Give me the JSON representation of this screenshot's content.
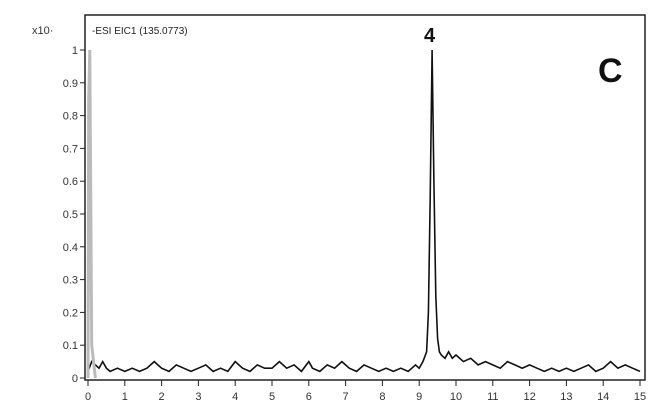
{
  "chart_data": {
    "type": "line",
    "y_multiplier_label": "x10·",
    "trace_label": "-ESI EIC1 (135.0773)",
    "panel_label": "C",
    "peak_label": "4",
    "xlim": [
      0,
      15
    ],
    "ylim": [
      0,
      1.05
    ],
    "x_ticks": [
      "0",
      "1",
      "2",
      "3",
      "4",
      "5",
      "6",
      "7",
      "8",
      "9",
      "10",
      "11",
      "12",
      "13",
      "14",
      "15"
    ],
    "y_ticks": [
      "0",
      "0.1",
      "0.2",
      "0.3",
      "0.4",
      "0.5",
      "0.6",
      "0.7",
      "0.8",
      "0.9",
      "1"
    ],
    "grid": false,
    "series": [
      {
        "color": "#111111",
        "x": [
          0.0,
          0.1,
          0.2,
          0.3,
          0.4,
          0.5,
          0.6,
          0.8,
          1.0,
          1.2,
          1.4,
          1.6,
          1.8,
          1.9,
          2.0,
          2.2,
          2.4,
          2.6,
          2.8,
          3.0,
          3.2,
          3.4,
          3.6,
          3.8,
          4.0,
          4.2,
          4.4,
          4.6,
          4.8,
          5.0,
          5.2,
          5.4,
          5.6,
          5.8,
          6.0,
          6.1,
          6.3,
          6.5,
          6.7,
          6.9,
          7.1,
          7.3,
          7.5,
          7.7,
          7.9,
          8.1,
          8.3,
          8.5,
          8.7,
          8.9,
          9.0,
          9.1,
          9.2,
          9.25,
          9.3,
          9.35,
          9.4,
          9.45,
          9.5,
          9.55,
          9.6,
          9.7,
          9.8,
          9.9,
          10.0,
          10.2,
          10.4,
          10.6,
          10.8,
          11.0,
          11.2,
          11.4,
          11.6,
          11.8,
          12.0,
          12.2,
          12.4,
          12.6,
          12.8,
          13.0,
          13.2,
          13.4,
          13.6,
          13.8,
          14.0,
          14.2,
          14.4,
          14.6,
          14.8,
          15.0
        ],
        "y": [
          0.02,
          0.05,
          0.04,
          0.03,
          0.05,
          0.03,
          0.02,
          0.03,
          0.02,
          0.03,
          0.02,
          0.03,
          0.05,
          0.04,
          0.03,
          0.02,
          0.04,
          0.03,
          0.02,
          0.03,
          0.04,
          0.02,
          0.03,
          0.02,
          0.05,
          0.03,
          0.02,
          0.04,
          0.03,
          0.03,
          0.05,
          0.03,
          0.04,
          0.02,
          0.05,
          0.03,
          0.02,
          0.04,
          0.03,
          0.05,
          0.03,
          0.02,
          0.04,
          0.03,
          0.02,
          0.03,
          0.02,
          0.03,
          0.02,
          0.04,
          0.03,
          0.05,
          0.08,
          0.2,
          0.55,
          1.0,
          0.6,
          0.25,
          0.12,
          0.08,
          0.07,
          0.06,
          0.08,
          0.06,
          0.07,
          0.05,
          0.06,
          0.04,
          0.05,
          0.04,
          0.03,
          0.05,
          0.04,
          0.03,
          0.04,
          0.03,
          0.02,
          0.03,
          0.02,
          0.03,
          0.02,
          0.03,
          0.04,
          0.02,
          0.03,
          0.05,
          0.03,
          0.04,
          0.03,
          0.02
        ]
      },
      {
        "color": "#bbbbbb",
        "x": [
          0.0,
          0.02,
          0.05,
          0.1,
          0.2
        ],
        "y": [
          0.0,
          0.85,
          1.0,
          0.1,
          0.0
        ]
      }
    ]
  }
}
